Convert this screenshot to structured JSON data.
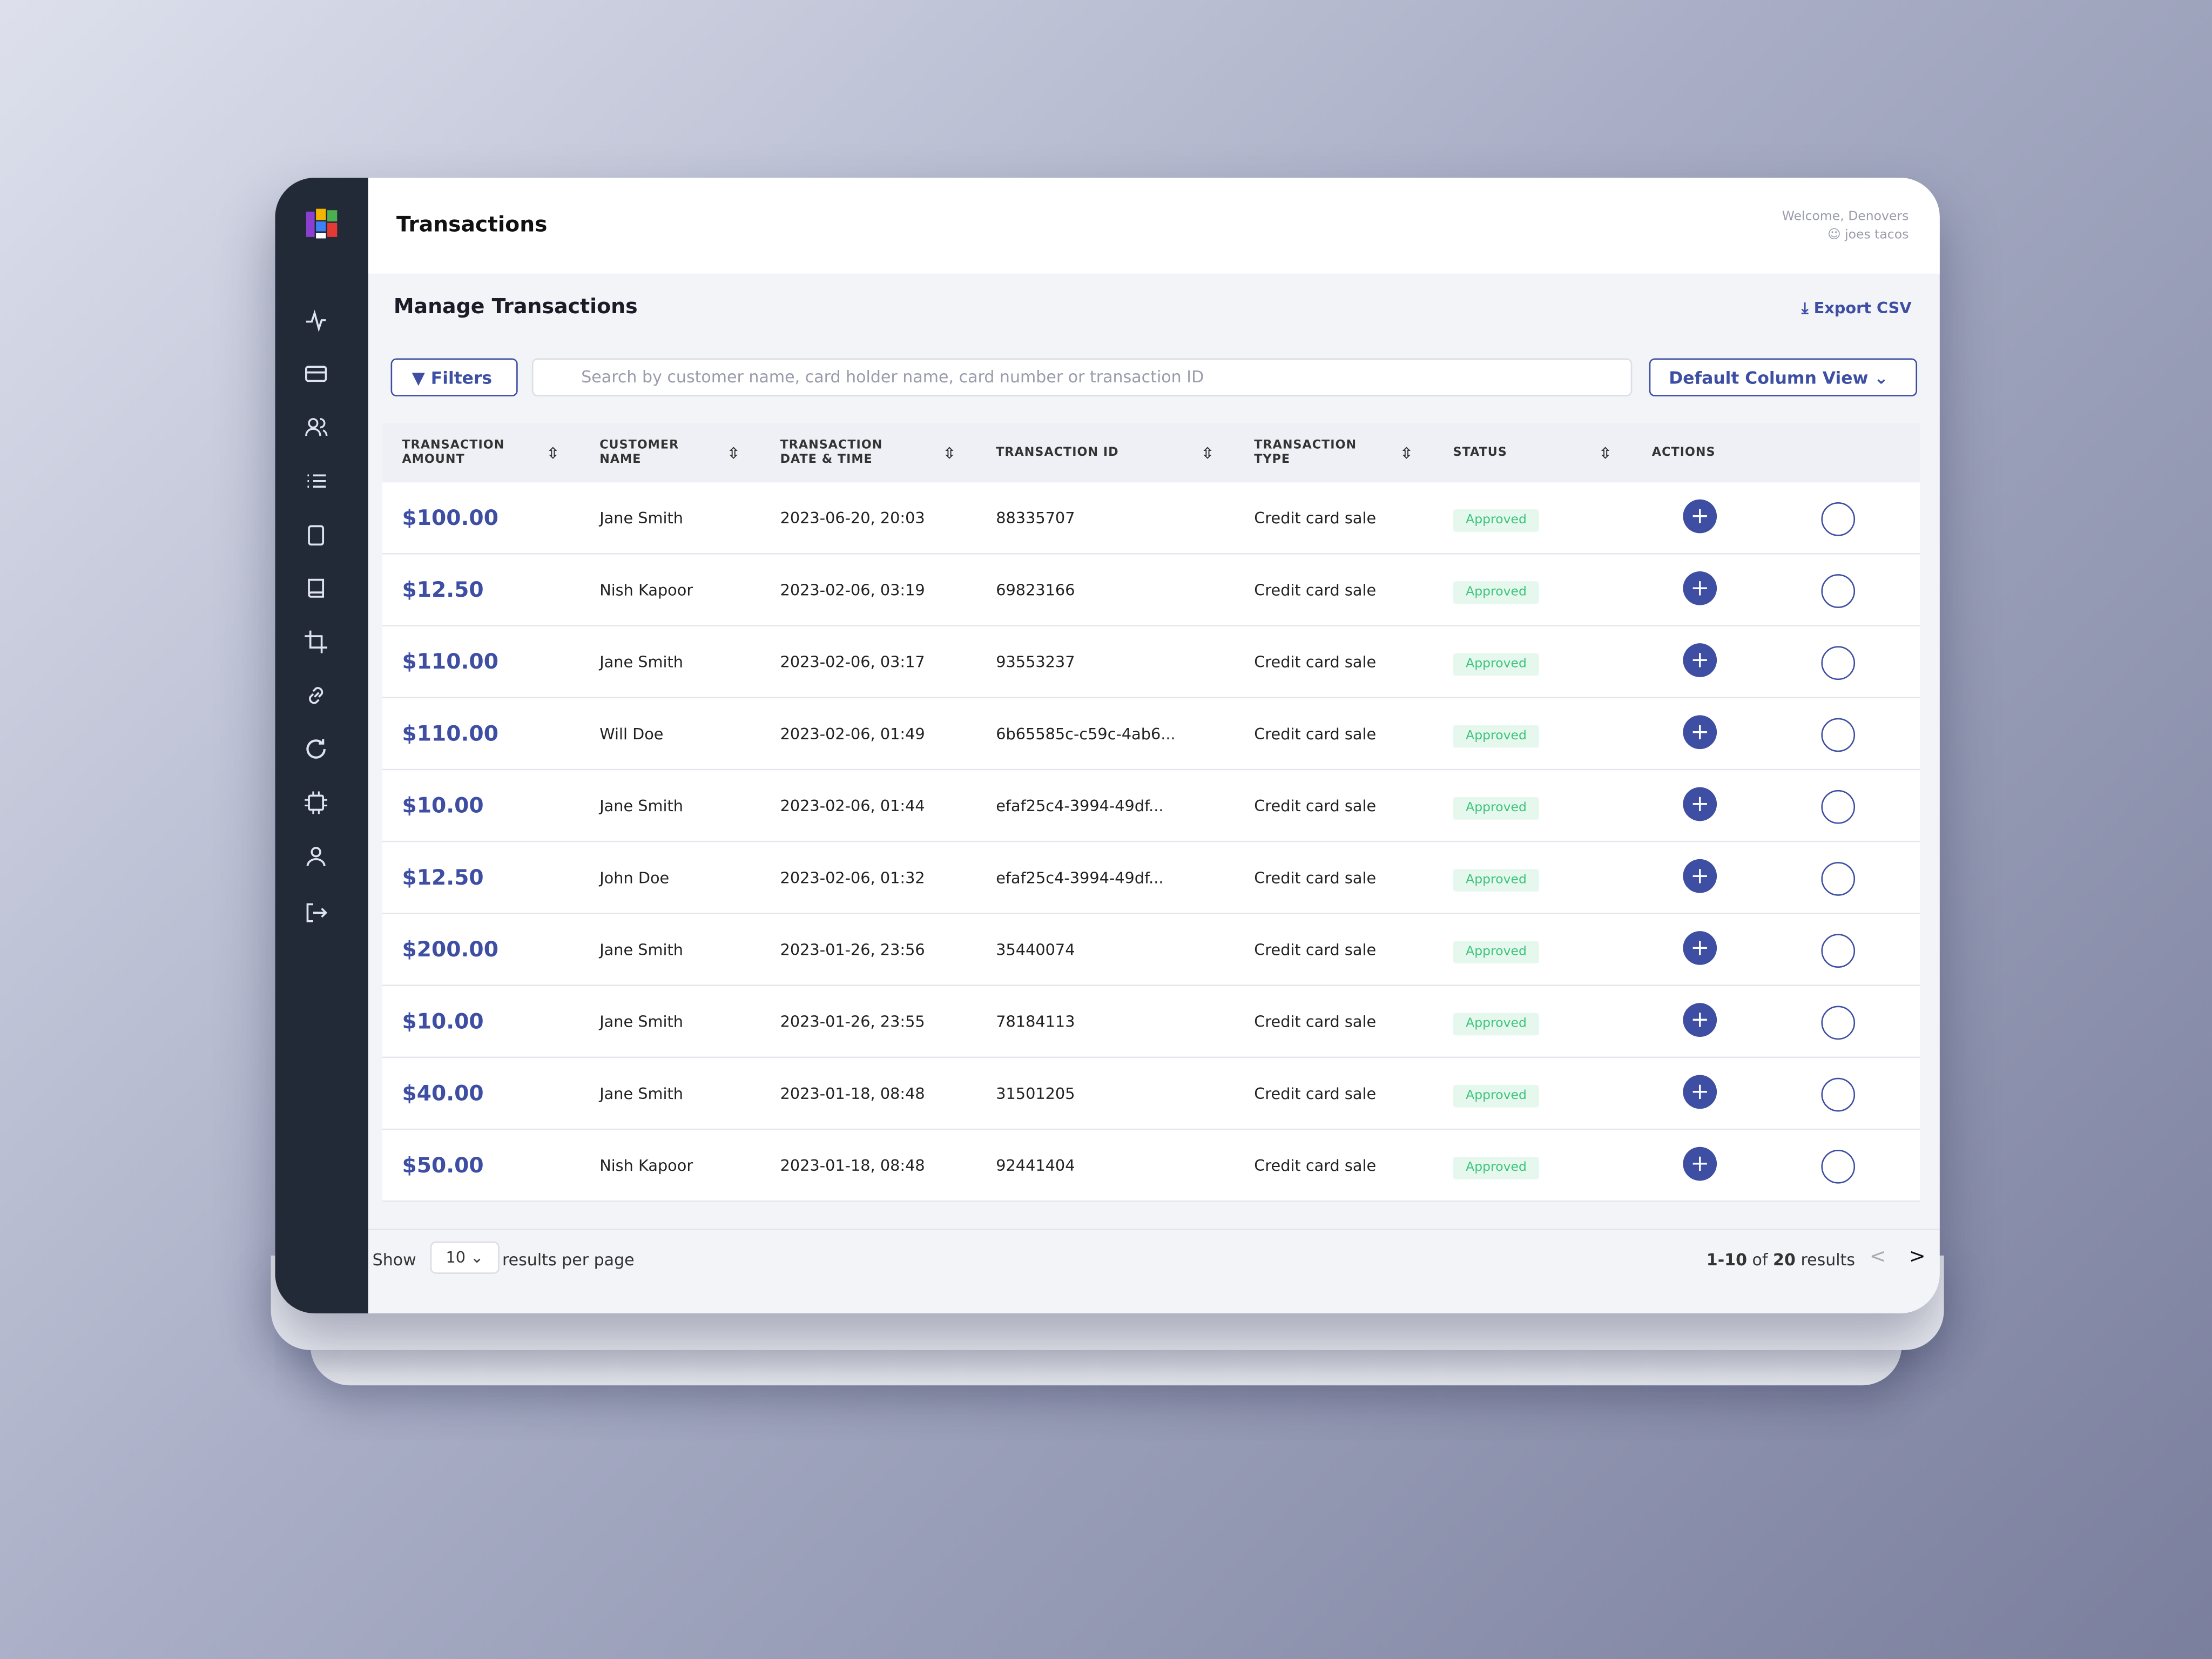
{
  "header": {
    "title": "Transactions",
    "welcome": "Welcome, Denovers",
    "user": "joes tacos"
  },
  "section": {
    "title": "Manage Transactions",
    "export": "Export CSV"
  },
  "toolbar": {
    "filters": "Filters",
    "search_placeholder": "Search by customer name, card holder name, card number or transaction ID",
    "column_view": "Default Column View"
  },
  "table": {
    "columns": [
      "TRANSACTION AMOUNT",
      "CUSTOMER NAME",
      "TRANSACTION DATE & TIME",
      "TRANSACTION ID",
      "TRANSACTION TYPE",
      "STATUS",
      "ACTIONS"
    ],
    "rows": [
      [
        "$100.00",
        "Jane Smith",
        "2023-06-20, 20:03",
        "88335707",
        "Credit card sale",
        "Approved"
      ],
      [
        "$12.50",
        "Nish Kapoor",
        "2023-02-06, 03:19",
        "69823166",
        "Credit card sale",
        "Approved"
      ],
      [
        "$110.00",
        "Jane Smith",
        "2023-02-06, 03:17",
        "93553237",
        "Credit card sale",
        "Approved"
      ],
      [
        "$110.00",
        "Will Doe",
        "2023-02-06, 01:49",
        "6b65585c-c59c-4ab6...",
        "Credit card sale",
        "Approved"
      ],
      [
        "$10.00",
        "Jane Smith",
        "2023-02-06, 01:44",
        "efaf25c4-3994-49df...",
        "Credit card sale",
        "Approved"
      ],
      [
        "$12.50",
        "John Doe",
        "2023-02-06, 01:32",
        "efaf25c4-3994-49df...",
        "Credit card sale",
        "Approved"
      ],
      [
        "$200.00",
        "Jane Smith",
        "2023-01-26, 23:56",
        "35440074",
        "Credit card sale",
        "Approved"
      ],
      [
        "$10.00",
        "Jane Smith",
        "2023-01-26, 23:55",
        "78184113",
        "Credit card sale",
        "Approved"
      ],
      [
        "$40.00",
        "Jane Smith",
        "2023-01-18, 08:48",
        "31501205",
        "Credit card sale",
        "Approved"
      ],
      [
        "$50.00",
        "Nish Kapoor",
        "2023-01-18, 08:48",
        "92441404",
        "Credit card sale",
        "Approved"
      ]
    ]
  },
  "footer": {
    "show": "Show",
    "per_page": "10",
    "per_page_suffix": "results per page",
    "range": "1-10",
    "of": "of",
    "total": "20",
    "results": "results"
  }
}
